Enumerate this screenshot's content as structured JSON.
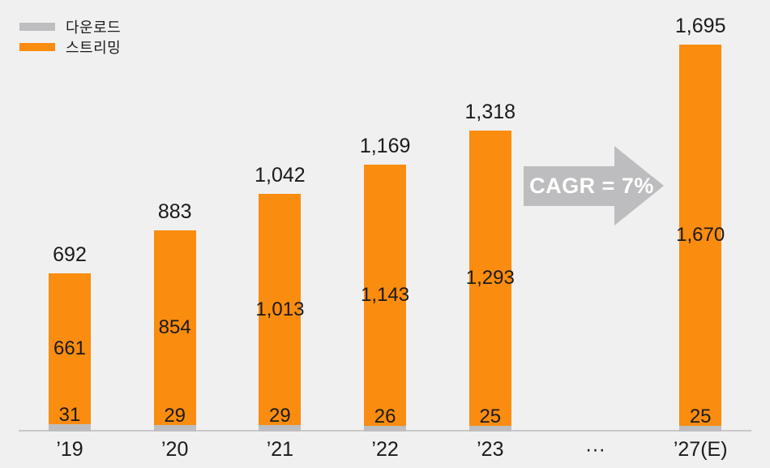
{
  "colors": {
    "background": "#F0F0F0",
    "download": "#BEBEC0",
    "streaming": "#FA8C0F",
    "text": "#1A1A1A",
    "axis_line": "#C8C8C8",
    "arrow_fill": "#BDBDBF",
    "arrow_text": "#FFFFFF"
  },
  "chart_data": {
    "type": "bar",
    "stacked": true,
    "title": "",
    "xlabel": "",
    "ylabel": "",
    "grid": false,
    "legend_position": "top-left",
    "ylim": [
      0,
      1750
    ],
    "categories": [
      "’19",
      "’20",
      "’21",
      "’22",
      "’23",
      "···",
      "’27(E)"
    ],
    "series": [
      {
        "name": "다운로드",
        "color": "#BEBEC0",
        "values": [
          31,
          29,
          29,
          26,
          25,
          null,
          25
        ]
      },
      {
        "name": "스트리밍",
        "color": "#FA8C0F",
        "values": [
          661,
          854,
          1013,
          1143,
          1293,
          null,
          1670
        ]
      }
    ],
    "totals": [
      692,
      883,
      1042,
      1169,
      1318,
      null,
      1695
    ],
    "annotations": [
      "CAGR = 7%"
    ]
  }
}
